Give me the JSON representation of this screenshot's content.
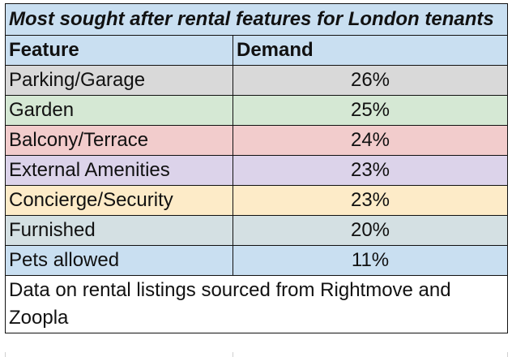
{
  "chart_data": {
    "type": "table",
    "title": "Most sought after rental features for London tenants",
    "columns": [
      "Feature",
      "Demand"
    ],
    "rows": [
      {
        "feature": "Parking/Garage",
        "demand": "26%",
        "value": 26,
        "color": "#d9d9d9"
      },
      {
        "feature": "Garden",
        "demand": "25%",
        "value": 25,
        "color": "#d5e8d4"
      },
      {
        "feature": "Balcony/Terrace",
        "demand": "24%",
        "value": 24,
        "color": "#f2cccc"
      },
      {
        "feature": "External Amenities",
        "demand": "23%",
        "value": 23,
        "color": "#dcd3ea"
      },
      {
        "feature": "Concierge/Security",
        "demand": "23%",
        "value": 23,
        "color": "#fdebc8"
      },
      {
        "feature": "Furnished",
        "demand": "20%",
        "value": 20,
        "color": "#d4e0e3"
      },
      {
        "feature": "Pets allowed",
        "demand": "11%",
        "value": 11,
        "color": "#c9dff1"
      }
    ],
    "note": "Data on rental listings sourced from Rightmove and Zoopla",
    "header_color": "#c9dff1"
  }
}
